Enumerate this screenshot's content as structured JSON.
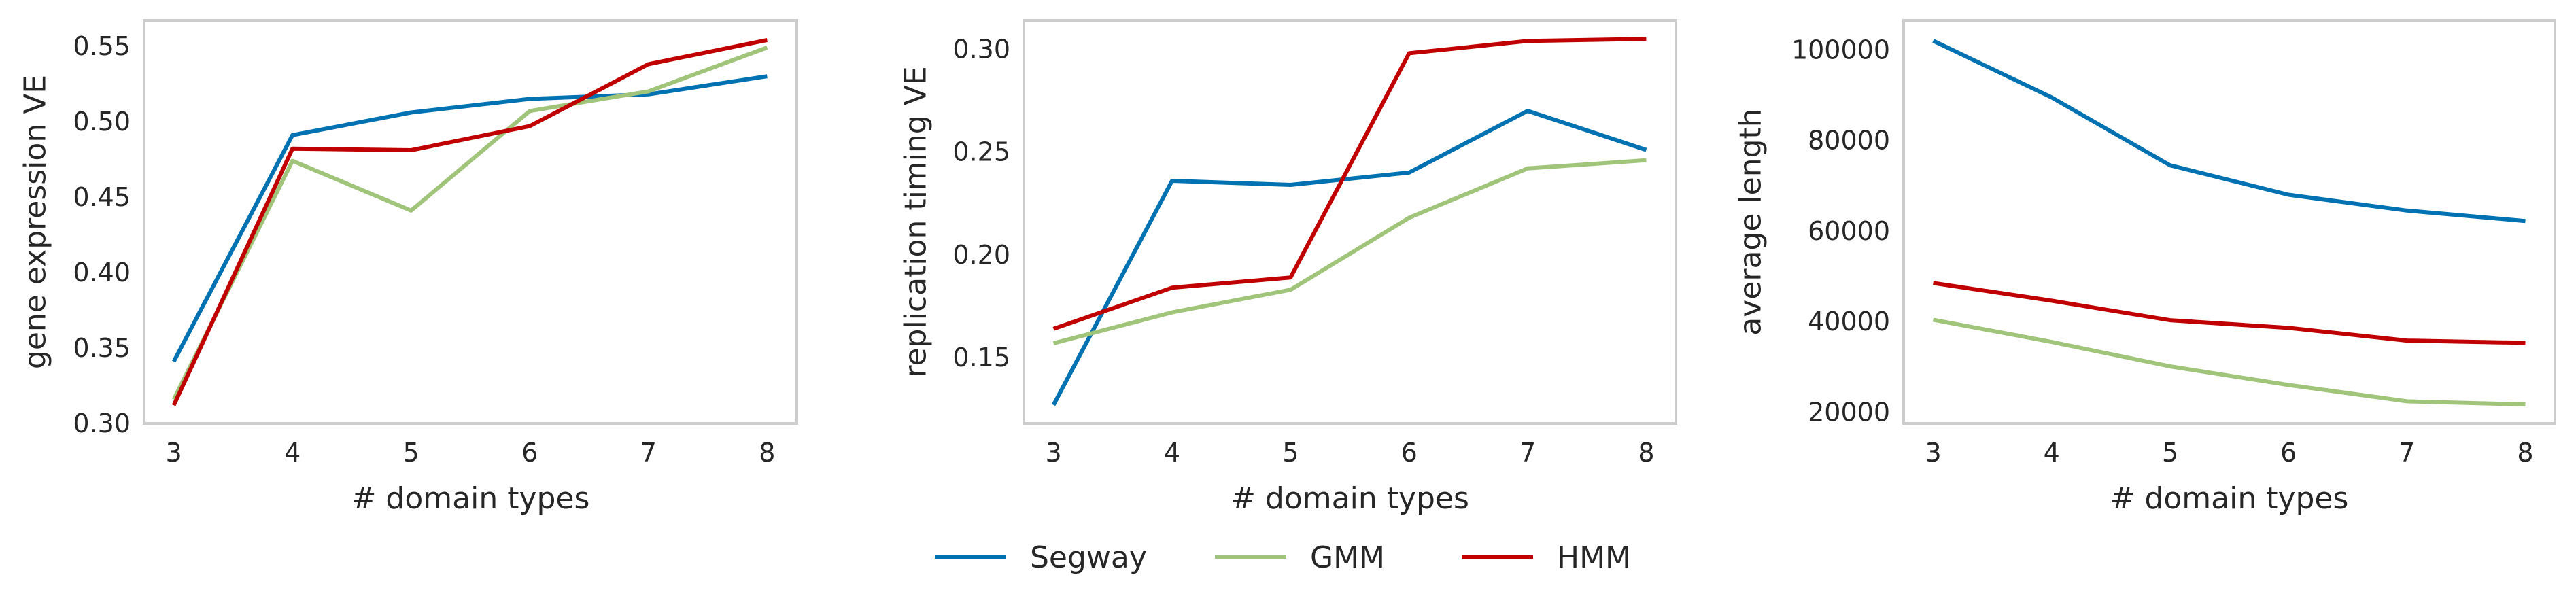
{
  "chart_data": [
    {
      "type": "line",
      "xlabel": "# domain types",
      "ylabel": "gene expression VE",
      "x": [
        3,
        4,
        5,
        6,
        7,
        8
      ],
      "xlim": [
        2.75,
        8.25
      ],
      "ylim": [
        0.3,
        0.567
      ],
      "yticks": [
        0.3,
        0.35,
        0.4,
        0.45,
        0.5,
        0.55
      ],
      "ytick_labels": [
        "0.30",
        "0.35",
        "0.40",
        "0.45",
        "0.50",
        "0.55"
      ],
      "grid": false,
      "series": [
        {
          "name": "Segway",
          "values": [
            0.341,
            0.491,
            0.506,
            0.515,
            0.518,
            0.53
          ]
        },
        {
          "name": "GMM",
          "values": [
            0.316,
            0.474,
            0.441,
            0.507,
            0.52,
            0.549
          ]
        },
        {
          "name": "HMM",
          "values": [
            0.312,
            0.482,
            0.481,
            0.497,
            0.538,
            0.554
          ]
        }
      ]
    },
    {
      "type": "line",
      "xlabel": "# domain types",
      "ylabel": "replication timing VE",
      "x": [
        3,
        4,
        5,
        6,
        7,
        8
      ],
      "xlim": [
        2.75,
        8.25
      ],
      "ylim": [
        0.118,
        0.314
      ],
      "yticks": [
        0.15,
        0.2,
        0.25,
        0.3
      ],
      "ytick_labels": [
        "0.15",
        "0.20",
        "0.25",
        "0.30"
      ],
      "grid": false,
      "series": [
        {
          "name": "Segway",
          "values": [
            0.127,
            0.236,
            0.234,
            0.24,
            0.27,
            0.251
          ]
        },
        {
          "name": "GMM",
          "values": [
            0.157,
            0.172,
            0.183,
            0.218,
            0.242,
            0.246
          ]
        },
        {
          "name": "HMM",
          "values": [
            0.164,
            0.184,
            0.189,
            0.298,
            0.304,
            0.305
          ]
        }
      ]
    },
    {
      "type": "line",
      "xlabel": "# domain types",
      "ylabel": "average length",
      "x": [
        3,
        4,
        5,
        6,
        7,
        8
      ],
      "xlim": [
        2.75,
        8.25
      ],
      "ylim": [
        17500,
        106500
      ],
      "yticks": [
        20000,
        40000,
        60000,
        80000,
        100000
      ],
      "ytick_labels": [
        "20000",
        "40000",
        "60000",
        "80000",
        "100000"
      ],
      "grid": false,
      "series": [
        {
          "name": "Segway",
          "values": [
            102000,
            89500,
            74500,
            68000,
            64500,
            62200
          ]
        },
        {
          "name": "GMM",
          "values": [
            40400,
            35500,
            30100,
            26000,
            22400,
            21700
          ]
        },
        {
          "name": "HMM",
          "values": [
            48500,
            44600,
            40300,
            38600,
            35800,
            35300
          ]
        }
      ]
    }
  ],
  "legend": {
    "placement": "bottom-center",
    "entries": [
      {
        "name": "Segway",
        "color": "#0072b2"
      },
      {
        "name": "GMM",
        "color": "#a0c47a"
      },
      {
        "name": "HMM",
        "color": "#c00000"
      }
    ]
  },
  "colors": {
    "Segway": "#0072b2",
    "GMM": "#a0c47a",
    "HMM": "#c00000",
    "frame": "#cccccc",
    "text": "#262626"
  }
}
